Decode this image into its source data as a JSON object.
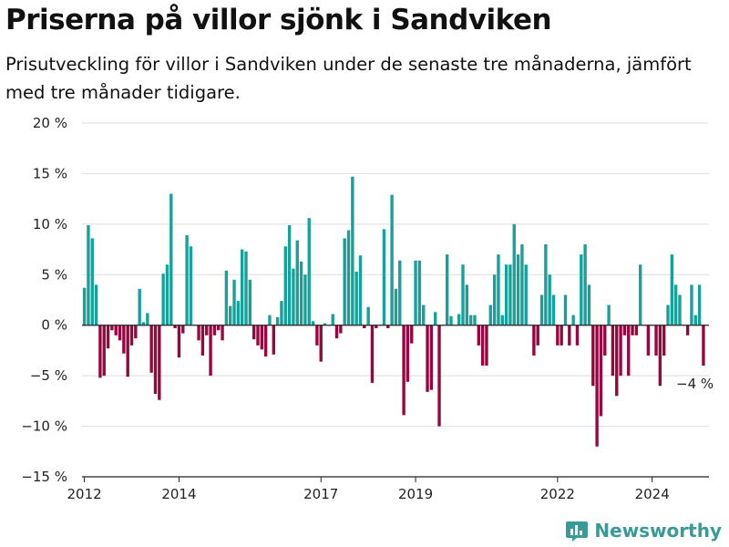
{
  "header": {
    "title": "Priserna på villor sjönk i Sandviken",
    "subtitle": "Prisutveckling för villor i Sandviken under de senaste tre månaderna, jämfört med tre månader tidigare."
  },
  "brand": {
    "name": "Newsworthy",
    "icon": "bar-chart-logo-icon"
  },
  "colors": {
    "positive": "#17a19a",
    "negative": "#96063f",
    "grid": "#dddddd",
    "axis": "#222222",
    "brand": "#3a9a98"
  },
  "chart_data": {
    "type": "bar",
    "title": "Priserna på villor sjönk i Sandviken",
    "subtitle": "Prisutveckling för villor i Sandviken under de senaste tre månaderna, jämfört med tre månader tidigare.",
    "ylim": [
      -15,
      20
    ],
    "yticks": [
      -15,
      -10,
      -5,
      0,
      5,
      10,
      15,
      20
    ],
    "ytick_labels": [
      "−15 %",
      "−10 %",
      "−5 %",
      "0 %",
      "5 %",
      "10 %",
      "15 %",
      "20 %"
    ],
    "xlim": [
      2011.95,
      2025.2
    ],
    "xticks": [
      2012,
      2014,
      2017,
      2019,
      2022,
      2024
    ],
    "xtick_labels": [
      "2012",
      "2014",
      "2017",
      "2019",
      "2022",
      "2024"
    ],
    "grid": true,
    "annotation": {
      "text": "−4 %",
      "x": 2024.7,
      "y": -4
    },
    "start": "2012-01",
    "frequency": "monthly",
    "values": [
      3.7,
      9.9,
      8.6,
      4.0,
      -5.2,
      -5.0,
      -2.3,
      -0.5,
      -1.0,
      -1.5,
      -2.8,
      -5.1,
      -2.0,
      -1.3,
      3.6,
      0.3,
      1.2,
      -4.7,
      -6.8,
      -7.4,
      5.1,
      6.0,
      13.0,
      -0.3,
      -3.2,
      -0.8,
      8.9,
      7.8,
      0.0,
      -1.5,
      -3.0,
      -1.0,
      -5.0,
      -1.0,
      -0.5,
      -1.5,
      5.4,
      1.9,
      4.5,
      2.4,
      7.5,
      7.3,
      4.5,
      -1.4,
      -2.0,
      -2.4,
      -3.1,
      1.0,
      -2.9,
      0.8,
      2.4,
      7.8,
      9.9,
      5.6,
      8.4,
      6.3,
      5.0,
      10.6,
      0.4,
      -2.0,
      -3.6,
      0.2,
      0.0,
      1.1,
      -1.3,
      -0.8,
      8.6,
      9.4,
      14.7,
      5.3,
      6.9,
      -0.3,
      1.8,
      -5.7,
      -0.3,
      0.0,
      9.5,
      -0.3,
      12.9,
      3.6,
      6.4,
      -8.9,
      -5.6,
      -1.8,
      6.4,
      6.4,
      2.0,
      -6.6,
      -6.4,
      1.3,
      -10.0,
      0.0,
      7.0,
      0.9,
      0.0,
      1.1,
      6.0,
      4.0,
      1.0,
      1.0,
      -2.0,
      -4.0,
      -4.0,
      2.0,
      5.0,
      7.0,
      1.0,
      6.0,
      6.0,
      10.0,
      7.0,
      8.0,
      6.0,
      0.0,
      -3.0,
      -2.0,
      3.0,
      8.0,
      5.0,
      3.0,
      -2.0,
      -2.0,
      3.0,
      -2.0,
      1.0,
      -2.0,
      7.0,
      8.0,
      4.0,
      -6.0,
      -12.0,
      -9.0,
      -3.0,
      2.0,
      -5.0,
      -7.0,
      -5.0,
      -1.0,
      -5.0,
      -1.0,
      -1.0,
      6.0,
      0.0,
      -3.0,
      0.0,
      -3.0,
      -6.0,
      -3.0,
      2.0,
      7.0,
      4.0,
      3.0,
      0.0,
      -1.0,
      4.0,
      1.0,
      4.0,
      -4.0
    ]
  }
}
